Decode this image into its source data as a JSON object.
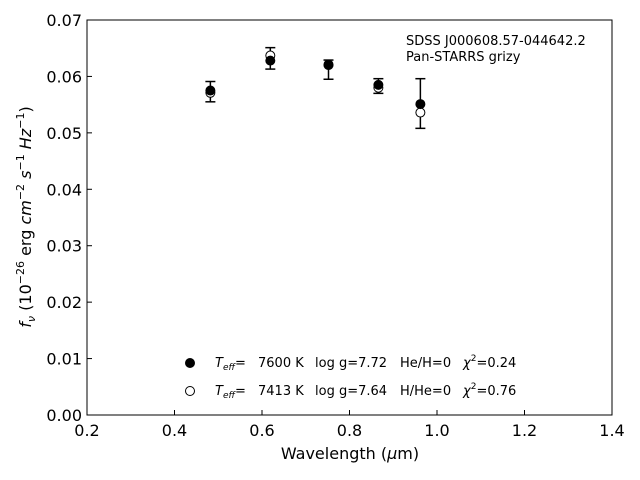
{
  "chart_data": {
    "type": "scatter",
    "annotation": [
      "SDSS J000608.57-044642.2",
      "Pan-STARRS grizy"
    ],
    "xlabel": "Wavelength (μm)",
    "ylabel": "f_ν (10^-26 erg cm^-2 s^-1 Hz^-1)",
    "xlim": [
      0.2,
      1.4
    ],
    "ylim": [
      0.0,
      0.07
    ],
    "xticks": [
      "0.2",
      "0.4",
      "0.6",
      "0.8",
      "1.0",
      "1.2",
      "1.4"
    ],
    "yticks": [
      "0.00",
      "0.01",
      "0.02",
      "0.03",
      "0.04",
      "0.05",
      "0.06",
      "0.07"
    ],
    "grid": false,
    "legend_position": "bottom-center",
    "observed": {
      "x": [
        0.482,
        0.619,
        0.752,
        0.866,
        0.962
      ],
      "y": [
        0.0573,
        0.0632,
        0.0612,
        0.0583,
        0.0552
      ],
      "err": [
        0.0018,
        0.0019,
        0.0017,
        0.0013,
        0.0044
      ]
    },
    "series": [
      {
        "marker": "filled",
        "x": [
          0.482,
          0.619,
          0.752,
          0.866,
          0.962
        ],
        "y": [
          0.0575,
          0.0628,
          0.062,
          0.0585,
          0.0551
        ],
        "legend": {
          "teff_label": "T",
          "teff_sub": "eff",
          "eq": "=",
          "teff": "7600 K",
          "logg": "log g=7.72",
          "comp": "He/H=0",
          "chi_label": "χ",
          "chi_sup": "2",
          "chi": "=0.24"
        }
      },
      {
        "marker": "open",
        "x": [
          0.482,
          0.619,
          0.752,
          0.866,
          0.962
        ],
        "y": [
          0.0571,
          0.0637,
          0.0621,
          0.058,
          0.0536
        ],
        "legend": {
          "teff_label": "T",
          "teff_sub": "eff",
          "eq": "=",
          "teff": "7413 K",
          "logg": "log g=7.64",
          "comp": "H/He=0",
          "chi_label": "χ",
          "chi_sup": "2",
          "chi": "=0.76"
        }
      }
    ]
  }
}
